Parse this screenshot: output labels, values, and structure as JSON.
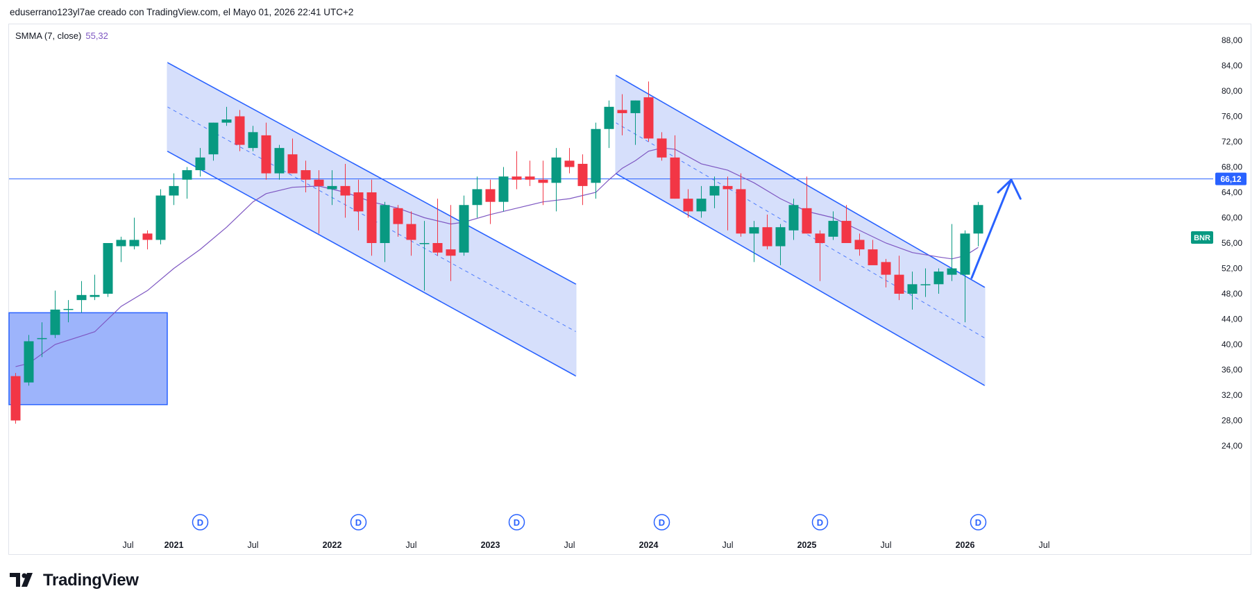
{
  "header": {
    "text": "eduserrano123yl7ae creado con TradingView.com, el Mayo 01, 2026 22:41 UTC+2"
  },
  "indicator": {
    "label": "SMMA (7, close)",
    "value": "55,32",
    "color": "#7e57c2"
  },
  "price_tag": {
    "value": "66,12",
    "color": "#2962ff"
  },
  "symbol_tag": {
    "label": "BNR",
    "color": "#089981"
  },
  "dividend_marker": "D",
  "footer": {
    "brand": "TradingView"
  },
  "colors": {
    "up": "#089981",
    "down": "#f23645",
    "channel": "#2962ff",
    "channel_fill": "#d1dcfb",
    "box_fill": "#9db4fb",
    "smma": "#7e57c2"
  },
  "chart_data": {
    "type": "candlestick",
    "interval": "1M",
    "y_axis": {
      "min": 24,
      "max": 88,
      "ticks": [
        "88,00",
        "84,00",
        "80,00",
        "76,00",
        "72,00",
        "68,00",
        "64,00",
        "60,00",
        "56,00",
        "52,00",
        "48,00",
        "44,00",
        "40,00",
        "36,00",
        "32,00",
        "28,00",
        "24,00"
      ]
    },
    "x_axis": {
      "ticks": [
        "Jul",
        "2021",
        "Jul",
        "2022",
        "Jul",
        "2023",
        "Jul",
        "2024",
        "Jul",
        "2025",
        "Jul",
        "2026",
        "Jul"
      ],
      "bold": [
        "2021",
        "2022",
        "2023",
        "2024",
        "2025",
        "2026"
      ]
    },
    "horizontal_line": 66.12,
    "candles": [
      [
        35.0,
        35.5,
        27.5,
        28.0
      ],
      [
        34.0,
        41.5,
        33.5,
        40.5
      ],
      [
        41.0,
        43.5,
        38.0,
        41.0
      ],
      [
        41.5,
        48.5,
        41.0,
        45.5
      ],
      [
        45.5,
        47.0,
        43.5,
        45.6
      ],
      [
        47.0,
        50.0,
        45.0,
        47.8
      ],
      [
        47.5,
        51.0,
        47.0,
        47.8
      ],
      [
        48.0,
        56.0,
        47.5,
        56.0
      ],
      [
        55.5,
        57.0,
        53.0,
        56.5
      ],
      [
        55.5,
        60.0,
        55.0,
        56.5
      ],
      [
        57.5,
        58.0,
        55.0,
        56.5
      ],
      [
        56.5,
        64.5,
        55.8,
        63.5
      ],
      [
        63.5,
        67.0,
        62.0,
        65.0
      ],
      [
        66.0,
        68.0,
        63.0,
        67.5
      ],
      [
        67.5,
        71.0,
        66.5,
        69.5
      ],
      [
        70.0,
        75.0,
        69.0,
        75.0
      ],
      [
        75.0,
        77.5,
        74.5,
        75.5
      ],
      [
        76.0,
        77.0,
        70.5,
        71.5
      ],
      [
        71.0,
        74.5,
        70.5,
        73.5
      ],
      [
        73.0,
        75.0,
        66.0,
        67.0
      ],
      [
        67.0,
        71.5,
        66.0,
        71.0
      ],
      [
        70.0,
        72.5,
        67.0,
        67.0
      ],
      [
        67.5,
        69.0,
        64.0,
        66.0
      ],
      [
        66.0,
        67.5,
        57.5,
        65.0
      ],
      [
        64.5,
        67.5,
        62.0,
        65.0
      ],
      [
        65.0,
        68.5,
        60.0,
        63.5
      ],
      [
        64.0,
        66.0,
        58.0,
        61.0
      ],
      [
        64.0,
        66.0,
        54.0,
        56.0
      ],
      [
        56.0,
        62.5,
        53.0,
        62.0
      ],
      [
        61.5,
        62.0,
        57.0,
        59.0
      ],
      [
        59.0,
        61.0,
        54.0,
        56.5
      ],
      [
        56.0,
        59.5,
        48.5,
        56.0
      ],
      [
        56.0,
        63.0,
        54.0,
        54.5
      ],
      [
        55.0,
        62.0,
        50.0,
        54.0
      ],
      [
        54.5,
        63.5,
        54.0,
        62.0
      ],
      [
        62.0,
        66.5,
        60.0,
        64.5
      ],
      [
        64.5,
        66.0,
        59.0,
        62.5
      ],
      [
        62.5,
        68.0,
        61.0,
        66.5
      ],
      [
        66.5,
        70.5,
        64.5,
        66.0
      ],
      [
        66.5,
        69.0,
        65.0,
        66.0
      ],
      [
        66.0,
        69.0,
        62.0,
        65.5
      ],
      [
        65.5,
        71.0,
        61.0,
        69.5
      ],
      [
        69.0,
        71.0,
        67.0,
        68.0
      ],
      [
        68.5,
        70.0,
        62.0,
        65.0
      ],
      [
        65.5,
        75.0,
        63.0,
        74.0
      ],
      [
        74.0,
        78.5,
        71.0,
        77.5
      ],
      [
        77.0,
        79.5,
        73.0,
        76.5
      ],
      [
        76.5,
        78.5,
        71.5,
        78.5
      ],
      [
        79.0,
        81.5,
        72.0,
        72.5
      ],
      [
        72.5,
        73.5,
        69.0,
        69.5
      ],
      [
        69.5,
        73.0,
        63.0,
        63.0
      ],
      [
        63.0,
        64.5,
        60.0,
        61.0
      ],
      [
        61.0,
        65.0,
        60.0,
        63.0
      ],
      [
        63.5,
        66.5,
        61.5,
        65.0
      ],
      [
        65.0,
        66.5,
        58.0,
        64.5
      ],
      [
        64.5,
        67.0,
        57.0,
        57.5
      ],
      [
        57.5,
        59.5,
        53.0,
        58.5
      ],
      [
        58.5,
        60.5,
        55.0,
        55.5
      ],
      [
        55.5,
        59.0,
        52.5,
        58.5
      ],
      [
        58.0,
        63.0,
        56.5,
        62.0
      ],
      [
        61.5,
        66.5,
        57.5,
        57.5
      ],
      [
        57.5,
        58.0,
        50.0,
        56.0
      ],
      [
        57.0,
        61.0,
        56.5,
        59.5
      ],
      [
        59.5,
        62.0,
        56.0,
        56.0
      ],
      [
        56.5,
        57.5,
        54.0,
        55.0
      ],
      [
        55.0,
        56.5,
        53.0,
        52.5
      ],
      [
        53.0,
        53.5,
        49.0,
        51.0
      ],
      [
        51.0,
        54.0,
        47.0,
        48.0
      ],
      [
        48.0,
        51.5,
        45.5,
        49.5
      ],
      [
        49.5,
        52.0,
        47.5,
        49.5
      ],
      [
        49.5,
        52.0,
        48.0,
        51.5
      ],
      [
        51.0,
        59.0,
        50.0,
        52.0
      ],
      [
        51.0,
        58.0,
        43.5,
        57.5
      ],
      [
        57.5,
        62.5,
        55.5,
        62.0
      ]
    ],
    "smma": [
      [
        0,
        36.5
      ],
      [
        1,
        37.0
      ],
      [
        3,
        40.0
      ],
      [
        6,
        42.0
      ],
      [
        8,
        46.0
      ],
      [
        10,
        48.5
      ],
      [
        12,
        52.0
      ],
      [
        14,
        55.0
      ],
      [
        16,
        58.5
      ],
      [
        17,
        60.5
      ],
      [
        18,
        62.5
      ],
      [
        19,
        63.8
      ],
      [
        21,
        64.8
      ],
      [
        23,
        65.0
      ],
      [
        25,
        64.0
      ],
      [
        27,
        62.5
      ],
      [
        29,
        61.5
      ],
      [
        31,
        60.0
      ],
      [
        33,
        59.0
      ],
      [
        34,
        59.3
      ],
      [
        36,
        60.5
      ],
      [
        38,
        61.5
      ],
      [
        40,
        62.5
      ],
      [
        42,
        63.0
      ],
      [
        44,
        64.0
      ],
      [
        45,
        66.0
      ],
      [
        46,
        67.8
      ],
      [
        47,
        69.0
      ],
      [
        48,
        70.5
      ],
      [
        49,
        71.0
      ],
      [
        50,
        70.8
      ],
      [
        52,
        68.5
      ],
      [
        54,
        67.5
      ],
      [
        56,
        65.5
      ],
      [
        58,
        63.0
      ],
      [
        60,
        61.0
      ],
      [
        62,
        60.0
      ],
      [
        64,
        58.0
      ],
      [
        66,
        56.0
      ],
      [
        68,
        54.5
      ],
      [
        70,
        53.8
      ],
      [
        71,
        53.5
      ],
      [
        72,
        54.0
      ],
      [
        73,
        55.32
      ]
    ],
    "channels": [
      {
        "upper": [
          [
            11.5,
            84.5
          ],
          [
            42.5,
            49.5
          ]
        ],
        "lower": [
          [
            11.5,
            70.5
          ],
          [
            42.5,
            35.0
          ]
        ],
        "mid": [
          [
            11.5,
            77.5
          ],
          [
            42.5,
            42.0
          ]
        ]
      },
      {
        "upper": [
          [
            45.5,
            82.5
          ],
          [
            73.5,
            49.0
          ]
        ],
        "lower": [
          [
            45.5,
            67.0
          ],
          [
            73.5,
            33.5
          ]
        ],
        "mid": [
          [
            45.5,
            75.0
          ],
          [
            73.5,
            41.0
          ]
        ]
      }
    ],
    "box": {
      "x0": -0.5,
      "x1": 11.5,
      "top": 45.0,
      "bottom": 30.5
    },
    "arrow": [
      [
        72.5,
        50.5
      ],
      [
        74.5,
        64.0
      ],
      [
        75.5,
        66.0
      ],
      [
        76.2,
        63.0
      ]
    ],
    "dividends": [
      14,
      26,
      38,
      49,
      61,
      73
    ]
  }
}
